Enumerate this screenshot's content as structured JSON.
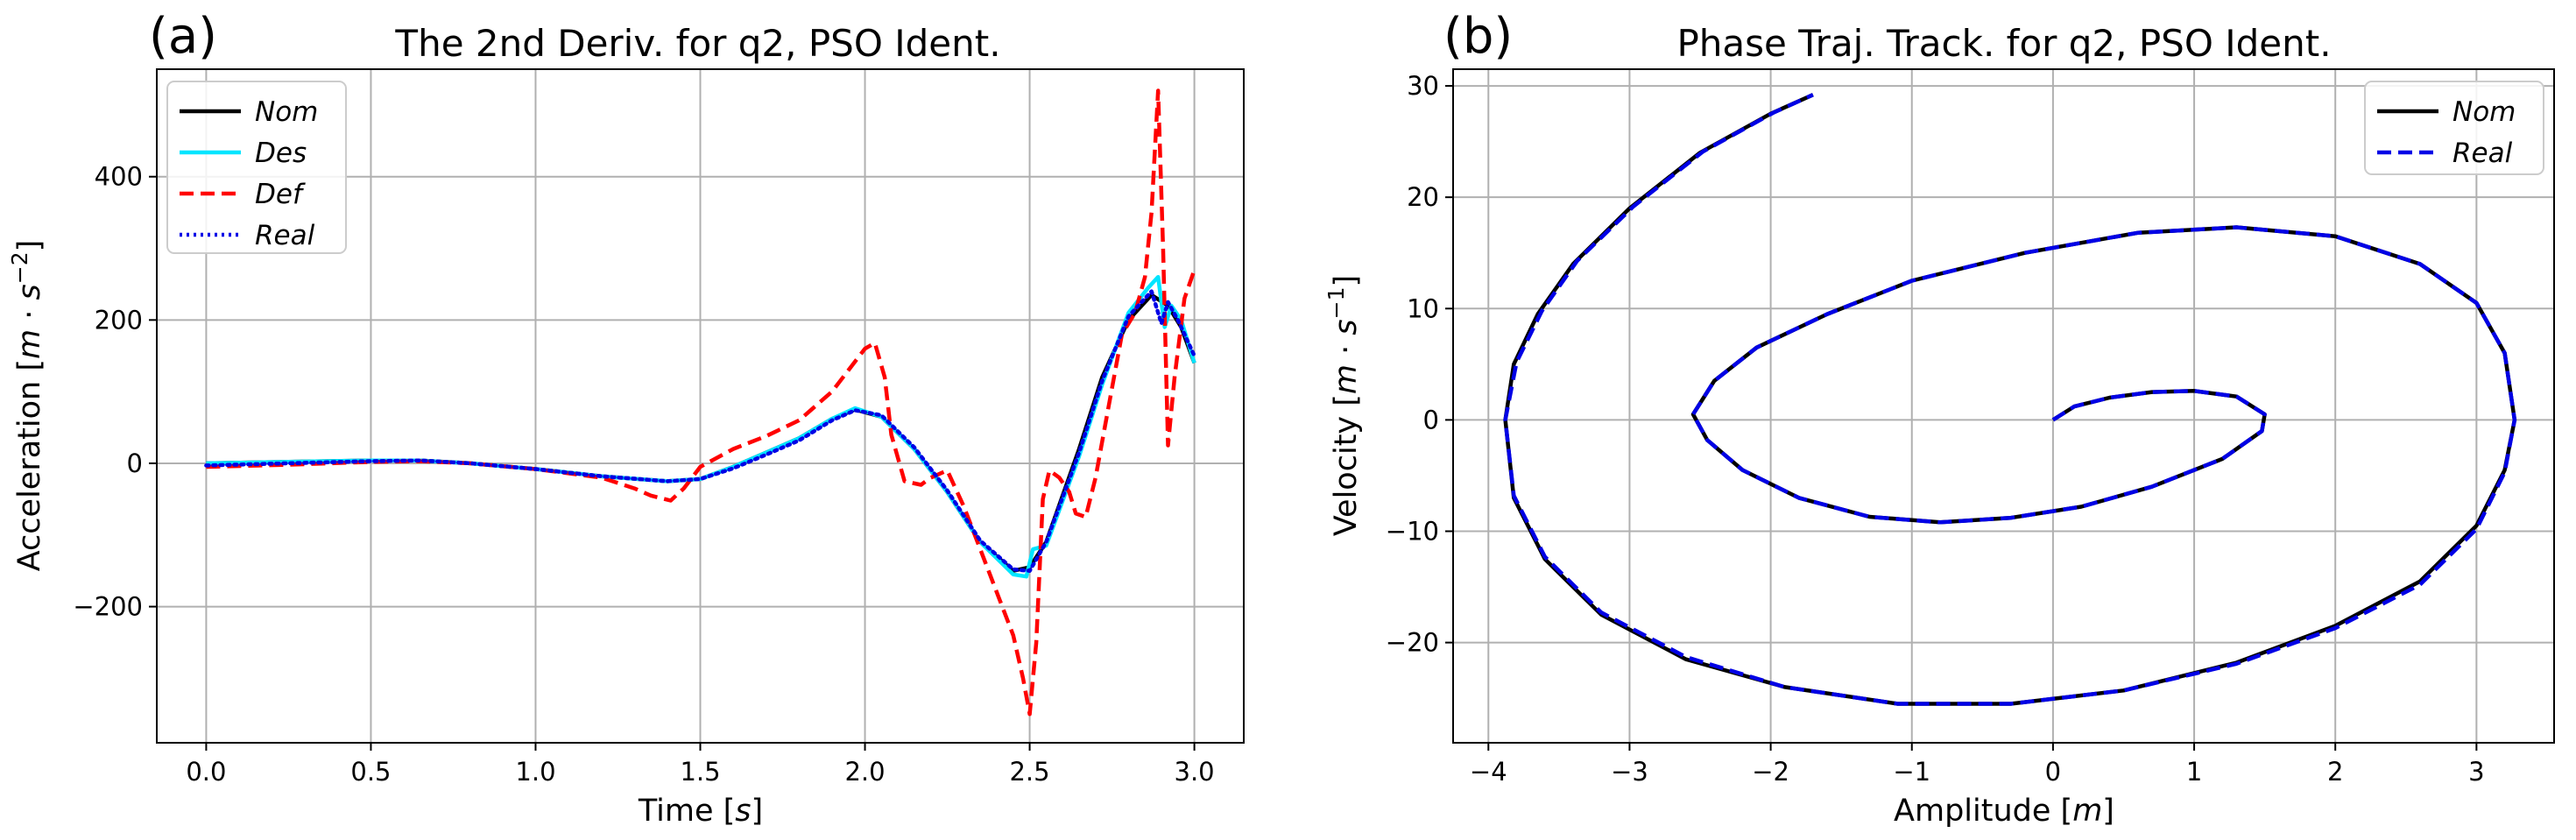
{
  "chart_data": [
    {
      "type": "line",
      "panel_label": "(a)",
      "title": "The 2nd Deriv. for q2, PSO Ident.",
      "xlabel": "Time [s]",
      "ylabel": "Acceleration [m·s⁻²]",
      "xlim": [
        -0.15,
        3.15
      ],
      "ylim": [
        -390,
        550
      ],
      "xticks": [
        0.0,
        0.5,
        1.0,
        1.5,
        2.0,
        2.5,
        3.0
      ],
      "xtick_labels": [
        "0.0",
        "0.5",
        "1.0",
        "1.5",
        "2.0",
        "2.5",
        "3.0"
      ],
      "yticks": [
        -200,
        0,
        200,
        400
      ],
      "ytick_labels": [
        "−200",
        "0",
        "200",
        "400"
      ],
      "grid": true,
      "legend_position": "top-left",
      "series": [
        {
          "name": "Nom",
          "color": "#000000",
          "style": "solid",
          "x": [
            0.0,
            0.25,
            0.5,
            0.65,
            0.8,
            1.0,
            1.2,
            1.4,
            1.5,
            1.6,
            1.7,
            1.8,
            1.9,
            1.97,
            2.05,
            2.15,
            2.25,
            2.35,
            2.45,
            2.5,
            2.55,
            2.65,
            2.72,
            2.8,
            2.87,
            2.92,
            2.96,
            3.0
          ],
          "y": [
            0,
            2,
            4,
            4,
            0,
            -8,
            -18,
            -25,
            -22,
            -5,
            15,
            35,
            62,
            75,
            65,
            20,
            -40,
            -110,
            -150,
            -145,
            -110,
            20,
            120,
            200,
            235,
            220,
            190,
            140
          ]
        },
        {
          "name": "Des",
          "color": "#00e5ff",
          "style": "solid",
          "x": [
            0.0,
            0.25,
            0.5,
            0.65,
            0.8,
            1.0,
            1.2,
            1.4,
            1.5,
            1.6,
            1.7,
            1.8,
            1.9,
            1.97,
            2.05,
            2.15,
            2.25,
            2.35,
            2.45,
            2.49,
            2.51,
            2.55,
            2.65,
            2.72,
            2.8,
            2.86,
            2.89,
            2.91,
            2.93,
            2.96,
            3.0
          ],
          "y": [
            0,
            2,
            4,
            4,
            0,
            -8,
            -18,
            -25,
            -22,
            -5,
            15,
            35,
            62,
            77,
            65,
            20,
            -40,
            -110,
            -155,
            -158,
            -120,
            -115,
            10,
            110,
            210,
            245,
            260,
            190,
            220,
            200,
            140
          ]
        },
        {
          "name": "Def",
          "color": "#ff0000",
          "style": "dashed",
          "x": [
            0.0,
            0.25,
            0.5,
            0.65,
            0.8,
            1.0,
            1.2,
            1.3,
            1.35,
            1.41,
            1.45,
            1.5,
            1.6,
            1.7,
            1.8,
            1.9,
            1.95,
            2.0,
            2.03,
            2.06,
            2.08,
            2.12,
            2.17,
            2.2,
            2.25,
            2.3,
            2.35,
            2.4,
            2.45,
            2.48,
            2.5,
            2.52,
            2.54,
            2.56,
            2.59,
            2.62,
            2.64,
            2.67,
            2.7,
            2.74,
            2.78,
            2.82,
            2.85,
            2.87,
            2.89,
            2.905,
            2.92,
            2.94,
            2.97,
            3.0
          ],
          "y": [
            -5,
            -2,
            2,
            3,
            0,
            -8,
            -20,
            -35,
            -45,
            -52,
            -35,
            -5,
            20,
            38,
            60,
            100,
            130,
            160,
            168,
            120,
            40,
            -25,
            -30,
            -20,
            -10,
            -60,
            -120,
            -180,
            -240,
            -300,
            -350,
            -250,
            -50,
            -10,
            -20,
            -40,
            -70,
            -75,
            -20,
            80,
            180,
            210,
            260,
            350,
            520,
            300,
            25,
            120,
            230,
            270
          ]
        },
        {
          "name": "Real",
          "color": "#0000e6",
          "style": "dotted",
          "x": [
            0.0,
            0.25,
            0.5,
            0.65,
            0.8,
            1.0,
            1.2,
            1.4,
            1.5,
            1.6,
            1.7,
            1.8,
            1.9,
            1.97,
            2.05,
            2.15,
            2.25,
            2.35,
            2.45,
            2.5,
            2.55,
            2.65,
            2.72,
            2.8,
            2.87,
            2.9,
            2.92,
            2.95,
            3.0
          ],
          "y": [
            -3,
            0,
            3,
            4,
            0,
            -8,
            -18,
            -25,
            -22,
            -7,
            12,
            32,
            60,
            74,
            67,
            22,
            -38,
            -108,
            -148,
            -150,
            -110,
            15,
            115,
            205,
            240,
            195,
            225,
            200,
            150
          ]
        }
      ]
    },
    {
      "type": "line",
      "panel_label": "(b)",
      "title": "Phase Traj. Track. for q2, PSO Ident.",
      "xlabel": "Amplitude [m]",
      "ylabel": "Velocity [m·s⁻¹]",
      "xlim": [
        -4.25,
        3.55
      ],
      "ylim": [
        -29,
        31.5
      ],
      "xticks": [
        -4,
        -3,
        -2,
        -1,
        0,
        1,
        2,
        3
      ],
      "xtick_labels": [
        "−4",
        "−3",
        "−2",
        "−1",
        "0",
        "1",
        "2",
        "3"
      ],
      "yticks": [
        -20,
        -10,
        0,
        10,
        20,
        30
      ],
      "ytick_labels": [
        "−20",
        "−10",
        "0",
        "10",
        "20",
        "30"
      ],
      "grid": true,
      "legend_position": "top-right",
      "series": [
        {
          "name": "Nom",
          "color": "#000000",
          "style": "solid",
          "x": [
            0.0,
            0.15,
            0.4,
            0.7,
            1.0,
            1.3,
            1.5,
            1.48,
            1.2,
            0.7,
            0.2,
            -0.3,
            -0.8,
            -1.3,
            -1.8,
            -2.2,
            -2.45,
            -2.55,
            -2.4,
            -2.1,
            -1.6,
            -1.0,
            -0.2,
            0.6,
            1.3,
            2.0,
            2.6,
            3.0,
            3.2,
            3.27,
            3.2,
            3.0,
            2.6,
            2.0,
            1.3,
            0.5,
            -0.3,
            -1.1,
            -1.9,
            -2.6,
            -3.2,
            -3.6,
            -3.82,
            -3.88,
            -3.82,
            -3.65,
            -3.4,
            -3.0,
            -2.5,
            -2.0,
            -1.7
          ],
          "y": [
            0.0,
            1.2,
            2.0,
            2.5,
            2.6,
            2.1,
            0.5,
            -1.0,
            -3.5,
            -6.0,
            -7.8,
            -8.8,
            -9.2,
            -8.7,
            -7.0,
            -4.5,
            -1.8,
            0.5,
            3.5,
            6.5,
            9.5,
            12.5,
            15.0,
            16.8,
            17.3,
            16.5,
            14.0,
            10.5,
            6.0,
            0.0,
            -4.5,
            -9.5,
            -14.5,
            -18.5,
            -21.8,
            -24.3,
            -25.5,
            -25.5,
            -24.0,
            -21.5,
            -17.5,
            -12.5,
            -7.0,
            0.0,
            5.0,
            9.5,
            14.0,
            19.0,
            24.0,
            27.5,
            29.2
          ]
        },
        {
          "name": "Real",
          "color": "#0000e6",
          "style": "dashed",
          "x": [
            0.0,
            0.15,
            0.4,
            0.7,
            1.0,
            1.3,
            1.5,
            1.48,
            1.2,
            0.7,
            0.2,
            -0.3,
            -0.8,
            -1.3,
            -1.8,
            -2.2,
            -2.45,
            -2.55,
            -2.4,
            -2.1,
            -1.6,
            -1.0,
            -0.2,
            0.6,
            1.3,
            2.0,
            2.6,
            3.0,
            3.2,
            3.27,
            3.2,
            3.0,
            2.6,
            2.0,
            1.3,
            0.5,
            -0.3,
            -1.1,
            -1.9,
            -2.6,
            -3.2,
            -3.6,
            -3.82,
            -3.88,
            -3.8,
            -3.62,
            -3.37,
            -2.97,
            -2.48,
            -1.98,
            -1.7
          ],
          "y": [
            0.0,
            1.2,
            2.0,
            2.5,
            2.6,
            2.1,
            0.5,
            -1.0,
            -3.5,
            -6.0,
            -7.8,
            -8.8,
            -9.2,
            -8.7,
            -7.0,
            -4.5,
            -1.8,
            0.5,
            3.5,
            6.5,
            9.5,
            12.5,
            15.0,
            16.8,
            17.3,
            16.5,
            14.0,
            10.5,
            6.0,
            0.0,
            -4.7,
            -9.8,
            -14.8,
            -18.7,
            -21.9,
            -24.3,
            -25.5,
            -25.5,
            -24.0,
            -21.3,
            -17.3,
            -12.3,
            -6.8,
            0.0,
            5.2,
            9.8,
            14.3,
            19.2,
            24.1,
            27.6,
            29.2
          ]
        }
      ]
    }
  ]
}
